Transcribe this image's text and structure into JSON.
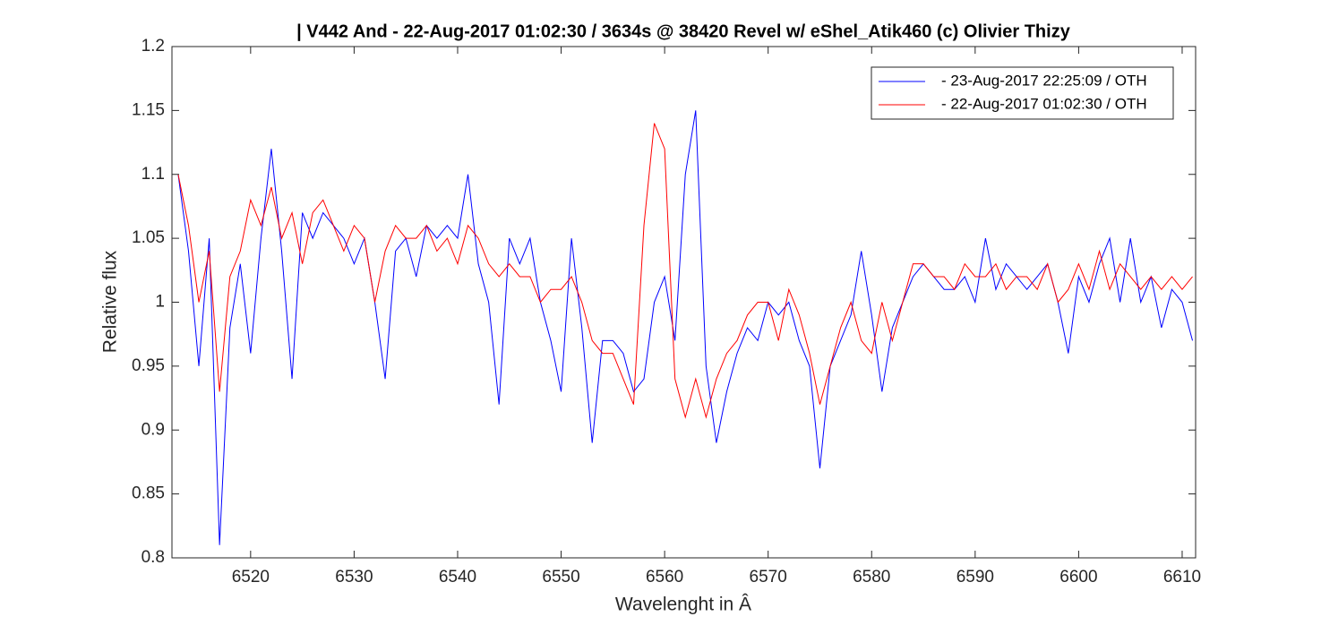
{
  "chart_data": {
    "type": "line",
    "title": "| V442 And - 22-Aug-2017 01:02:30 / 3634s @ 38420 Revel w/ eShel_Atik460 (c) Olivier Thizy",
    "x_label": "Wavelenght in Â",
    "y_label": "Relative flux",
    "x": [
      6513,
      6514,
      6515,
      6516,
      6517,
      6518,
      6519,
      6520,
      6521,
      6522,
      6523,
      6524,
      6525,
      6526,
      6527,
      6528,
      6529,
      6530,
      6531,
      6532,
      6533,
      6534,
      6535,
      6536,
      6537,
      6538,
      6539,
      6540,
      6541,
      6542,
      6543,
      6544,
      6545,
      6546,
      6547,
      6548,
      6549,
      6550,
      6551,
      6552,
      6553,
      6554,
      6555,
      6556,
      6557,
      6558,
      6559,
      6560,
      6561,
      6562,
      6563,
      6564,
      6565,
      6566,
      6567,
      6568,
      6569,
      6570,
      6571,
      6572,
      6573,
      6574,
      6575,
      6576,
      6577,
      6578,
      6579,
      6580,
      6581,
      6582,
      6583,
      6584,
      6585,
      6586,
      6587,
      6588,
      6589,
      6590,
      6591,
      6592,
      6593,
      6594,
      6595,
      6596,
      6597,
      6598,
      6599,
      6600,
      6601,
      6602,
      6603,
      6604,
      6605,
      6606,
      6607,
      6608,
      6609,
      6610,
      6611
    ],
    "series": [
      {
        "name": "- 23-Aug-2017 22:25:09 / OTH",
        "color": "#0000ff",
        "values": [
          1.1,
          1.04,
          0.95,
          1.05,
          0.81,
          0.98,
          1.03,
          0.96,
          1.05,
          1.12,
          1.04,
          0.94,
          1.07,
          1.05,
          1.07,
          1.06,
          1.05,
          1.03,
          1.05,
          1.0,
          0.94,
          1.04,
          1.05,
          1.02,
          1.06,
          1.05,
          1.06,
          1.05,
          1.1,
          1.03,
          1.0,
          0.92,
          1.05,
          1.03,
          1.05,
          1.0,
          0.97,
          0.93,
          1.05,
          0.98,
          0.89,
          0.97,
          0.97,
          0.96,
          0.93,
          0.94,
          1.0,
          1.02,
          0.97,
          1.1,
          1.15,
          0.95,
          0.89,
          0.93,
          0.96,
          0.98,
          0.97,
          1.0,
          0.99,
          1.0,
          0.97,
          0.95,
          0.87,
          0.95,
          0.97,
          0.99,
          1.04,
          0.99,
          0.93,
          0.98,
          1.0,
          1.02,
          1.03,
          1.02,
          1.01,
          1.01,
          1.02,
          1.0,
          1.05,
          1.01,
          1.03,
          1.02,
          1.01,
          1.02,
          1.03,
          1.0,
          0.96,
          1.02,
          1.0,
          1.03,
          1.05,
          1.0,
          1.05,
          1.0,
          1.02,
          0.98,
          1.01,
          1.0,
          0.97
        ]
      },
      {
        "name": "- 22-Aug-2017 01:02:30 / OTH",
        "color": "#ff0000",
        "values": [
          1.1,
          1.06,
          1.0,
          1.04,
          0.93,
          1.02,
          1.04,
          1.08,
          1.06,
          1.09,
          1.05,
          1.07,
          1.03,
          1.07,
          1.08,
          1.06,
          1.04,
          1.06,
          1.05,
          1.0,
          1.04,
          1.06,
          1.05,
          1.05,
          1.06,
          1.04,
          1.05,
          1.03,
          1.06,
          1.05,
          1.03,
          1.02,
          1.03,
          1.02,
          1.02,
          1.0,
          1.01,
          1.01,
          1.02,
          1.0,
          0.97,
          0.96,
          0.96,
          0.94,
          0.92,
          1.06,
          1.14,
          1.12,
          0.94,
          0.91,
          0.94,
          0.91,
          0.94,
          0.96,
          0.97,
          0.99,
          1.0,
          1.0,
          0.97,
          1.01,
          0.99,
          0.96,
          0.92,
          0.95,
          0.98,
          1.0,
          0.97,
          0.96,
          1.0,
          0.97,
          1.0,
          1.03,
          1.03,
          1.02,
          1.02,
          1.01,
          1.03,
          1.02,
          1.02,
          1.03,
          1.01,
          1.02,
          1.02,
          1.01,
          1.03,
          1.0,
          1.01,
          1.03,
          1.01,
          1.04,
          1.01,
          1.03,
          1.02,
          1.01,
          1.02,
          1.01,
          1.02,
          1.01,
          1.02
        ]
      }
    ],
    "xlim": [
      6512.4,
      6611.3
    ],
    "xticks": [
      6520,
      6530,
      6540,
      6550,
      6560,
      6570,
      6580,
      6590,
      6600,
      6610
    ],
    "ylim": [
      0.8,
      1.2
    ],
    "yticks": [
      0.8,
      0.85,
      0.9,
      0.95,
      1,
      1.05,
      1.1,
      1.15,
      1.2
    ],
    "grid": false,
    "legend": "upper right"
  }
}
